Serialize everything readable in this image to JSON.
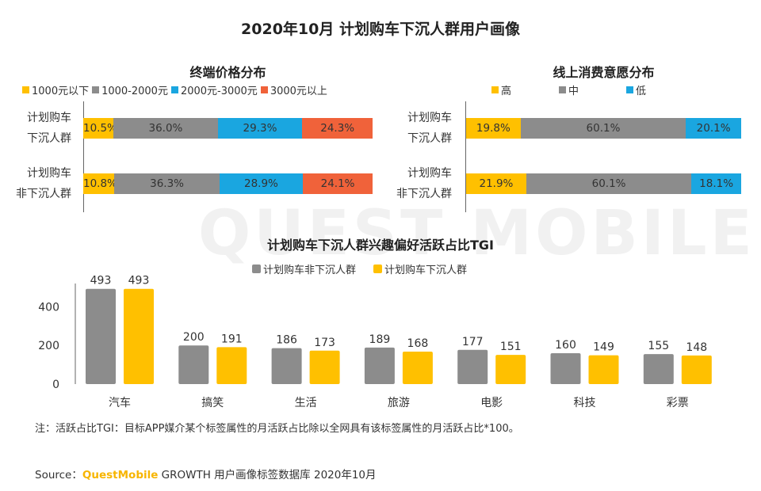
{
  "title": "2020年10月 计划购车下沉人群用户画像",
  "watermark": "QUEST MOBILE",
  "colors": {
    "yellow": "#FFC000",
    "gray": "#8C8C8C",
    "blue": "#1AA6E0",
    "orange": "#F0623A",
    "bar_gray": "#8C8C8C",
    "bar_yellow": "#FFC000"
  },
  "chart_data": [
    {
      "type": "bar",
      "stacked": true,
      "orientation": "horizontal",
      "title": "终端价格分布",
      "categories": [
        "计划购车\n下沉人群",
        "计划购车\n非下沉人群"
      ],
      "category_lines": [
        [
          "计划购车",
          "下沉人群"
        ],
        [
          "计划购车",
          "非下沉人群"
        ]
      ],
      "series": [
        {
          "name": "1000元以下",
          "values": [
            10.5,
            10.8
          ],
          "labels": [
            "10.5%",
            "10.8%"
          ]
        },
        {
          "name": "1000-2000元",
          "values": [
            36.0,
            36.3
          ],
          "labels": [
            "36.0%",
            "36.3%"
          ]
        },
        {
          "name": "2000元-3000元",
          "values": [
            29.3,
            28.9
          ],
          "labels": [
            "29.3%",
            "28.9%"
          ]
        },
        {
          "name": "3000元以上",
          "values": [
            24.3,
            24.1
          ],
          "labels": [
            "24.3%",
            "24.1%"
          ]
        }
      ],
      "xlim": [
        0,
        100
      ]
    },
    {
      "type": "bar",
      "stacked": true,
      "orientation": "horizontal",
      "title": "线上消费意愿分布",
      "categories": [
        "计划购车\n下沉人群",
        "计划购车\n非下沉人群"
      ],
      "category_lines": [
        [
          "计划购车",
          "下沉人群"
        ],
        [
          "计划购车",
          "非下沉人群"
        ]
      ],
      "series": [
        {
          "name": "高",
          "values": [
            19.8,
            21.9
          ],
          "labels": [
            "19.8%",
            "21.9%"
          ]
        },
        {
          "name": "中",
          "values": [
            60.1,
            60.1
          ],
          "labels": [
            "60.1%",
            "60.1%"
          ]
        },
        {
          "name": "低",
          "values": [
            20.1,
            18.1
          ],
          "labels": [
            "20.1%",
            "18.1%"
          ]
        }
      ],
      "xlim": [
        0,
        100
      ]
    },
    {
      "type": "bar",
      "title": "计划购车下沉人群兴趣偏好活跃占比TGI",
      "categories": [
        "汽车",
        "搞笑",
        "生活",
        "旅游",
        "电影",
        "科技",
        "彩票"
      ],
      "series": [
        {
          "name": "计划购车非下沉人群",
          "values": [
            493,
            200,
            186,
            189,
            177,
            160,
            155
          ]
        },
        {
          "name": "计划购车下沉人群",
          "values": [
            493,
            191,
            173,
            168,
            151,
            149,
            148
          ]
        }
      ],
      "yticks": [
        "0",
        "200",
        "400"
      ],
      "ytick_values": [
        0,
        200,
        400
      ],
      "ylim": [
        0,
        500
      ]
    }
  ],
  "note": "注：活跃占比TGI：目标APP媒介某个标签属性的月活跃占比除以全网具有该标签属性的月活跃占比*100。",
  "source": {
    "prefix": "Source：",
    "brand": "QuestMobile",
    "rest": " GROWTH 用户画像标签数据库 2020年10月"
  }
}
